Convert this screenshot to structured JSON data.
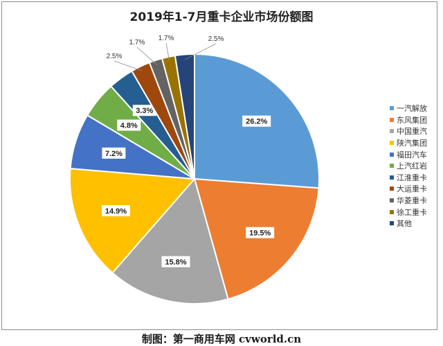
{
  "title": "2019年1-7月重卡企业市场份额图",
  "footer": "制图：第一商用车网 cvworld.cn",
  "chart_data": {
    "type": "pie",
    "title": "2019年1-7月重卡企业市场份额图",
    "legend_position": "right",
    "start_angle_deg": 0,
    "direction": "clockwise",
    "slices": [
      {
        "name": "一汽解放",
        "value": 26.2,
        "label": "26.2%",
        "color": "#5B9BD5",
        "label_style": "inside"
      },
      {
        "name": "东风集团",
        "value": 19.5,
        "label": "19.5%",
        "color": "#ED7D31",
        "label_style": "inside"
      },
      {
        "name": "中国重汽",
        "value": 15.8,
        "label": "15.8%",
        "color": "#A5A5A5",
        "label_style": "inside"
      },
      {
        "name": "陕汽集团",
        "value": 14.9,
        "label": "14.9%",
        "color": "#FFC000",
        "label_style": "inside"
      },
      {
        "name": "福田汽车",
        "value": 7.2,
        "label": "7.2%",
        "color": "#4472C4",
        "label_style": "inside"
      },
      {
        "name": "上汽红岩",
        "value": 4.8,
        "label": "4.8%",
        "color": "#70AD47",
        "label_style": "inside"
      },
      {
        "name": "江淮重卡",
        "value": 3.3,
        "label": "3.3%",
        "color": "#255E91",
        "label_style": "inside"
      },
      {
        "name": "大运重卡",
        "value": 2.5,
        "label": "2.5%",
        "color": "#9E480E",
        "label_style": "outside"
      },
      {
        "name": "华菱重卡",
        "value": 1.7,
        "label": "1.7%",
        "color": "#636363",
        "label_style": "outside"
      },
      {
        "name": "徐工重卡",
        "value": 1.7,
        "label": "1.7%",
        "color": "#997300",
        "label_style": "outside"
      },
      {
        "name": "其他",
        "value": 2.5,
        "label": "2.5%",
        "color": "#264478",
        "label_style": "outside"
      }
    ]
  }
}
